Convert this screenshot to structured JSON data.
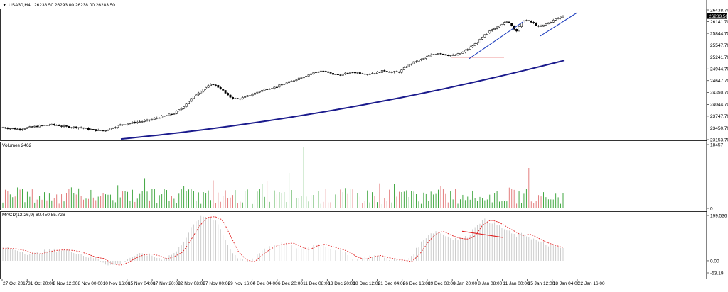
{
  "header": {
    "symbol": "USA30,H4",
    "ohlc": "26238.50 26293.00 26238.00 26283.50",
    "arrow": "▼"
  },
  "colors": {
    "background": "#ffffff",
    "axis": "#000000",
    "candle": "#000000",
    "ma": "#1a1a8c",
    "trendline": "#1f3fbf",
    "support": "#e03030",
    "volume_up": "#2e9e2e",
    "volume_down": "#e07070",
    "macd_hist": "#c0c0c0",
    "macd_signal": "#e02020",
    "current_price_box": "#000000"
  },
  "chart_data": [
    {
      "type": "candlestick",
      "title": "USA30,H4",
      "y_ticks": [
        "26438.70",
        "26141.70",
        "25844.70",
        "25547.70",
        "25241.70",
        "24944.70",
        "24647.70",
        "24350.70",
        "24044.70",
        "23747.70",
        "23450.70",
        "23153.70"
      ],
      "current_price": "26283.50",
      "ylim": [
        23153.7,
        26438.7
      ],
      "x_ticks": [
        "27 Oct 2017",
        "31 Oct 20:00",
        "3 Nov 12:00",
        "8 Nov 00:00",
        "10 Nov 16:00",
        "15 Nov 04:00",
        "17 Nov 20:00",
        "22 Nov 08:00",
        "27 Nov 00:00",
        "29 Nov 16:00",
        "4 Dec 04:00",
        "6 Dec 20:00",
        "11 Dec 08:00",
        "13 Dec 20:00",
        "18 Dec 12:00",
        "21 Dec 04:00",
        "26 Dec 16:00",
        "29 Dec 08:00",
        "3 Jan 20:00",
        "8 Jan 08:00",
        "11 Jan 00:00",
        "15 Jan 12:00",
        "18 Jan 04:00",
        "22 Jan 16:00"
      ],
      "close_path": [
        23460,
        23440,
        23420,
        23450,
        23480,
        23510,
        23530,
        23520,
        23480,
        23470,
        23460,
        23420,
        23390,
        23380,
        23450,
        23520,
        23560,
        23590,
        23620,
        23650,
        23720,
        23760,
        23820,
        23950,
        24150,
        24330,
        24470,
        24560,
        24450,
        24250,
        24180,
        24220,
        24300,
        24380,
        24450,
        24480,
        24560,
        24620,
        24710,
        24780,
        24850,
        24900,
        24830,
        24790,
        24820,
        24860,
        24840,
        24820,
        24850,
        24900,
        24860,
        24870,
        25030,
        25130,
        25200,
        25290,
        25350,
        25300,
        25280,
        25350,
        25480,
        25620,
        25810,
        25960,
        26080,
        26140,
        25900,
        26190,
        26120,
        26000,
        26100,
        26200,
        26283.5
      ],
      "moving_average": {
        "start": 23170,
        "end": 25160
      },
      "annotations": {
        "trend_channel_upper": {
          "from": 25241.7,
          "to": 26141.7
        },
        "trend_channel_lower": {
          "from": 25850,
          "to": 26300
        },
        "support_level": 25241.7
      }
    },
    {
      "type": "bar",
      "title": "Volumes 2462",
      "y_ticks": [
        "18457",
        "0"
      ],
      "ylim": [
        0,
        18457
      ]
    },
    {
      "type": "line",
      "title": "MACD(12,26,9) 60.450 55.726",
      "y_ticks": [
        "199.536",
        "0.00",
        "-53.19"
      ],
      "ylim": [
        -53.19,
        199.536
      ],
      "signal_path": [
        55,
        52,
        45,
        32,
        30,
        40,
        46,
        48,
        46,
        40,
        28,
        15,
        10,
        -12,
        -20,
        -8,
        12,
        26,
        30,
        22,
        8,
        20,
        40,
        92,
        150,
        190,
        195,
        180,
        110,
        40,
        5,
        -6,
        24,
        50,
        68,
        75,
        78,
        62,
        48,
        66,
        73,
        62,
        52,
        40,
        18,
        6,
        16,
        24,
        14,
        8,
        2,
        -3,
        30,
        80,
        118,
        130,
        112,
        100,
        95,
        108,
        160,
        180,
        170,
        150,
        130,
        110,
        118,
        100,
        82,
        70,
        60,
        55.7
      ],
      "divergence_line": {
        "from": 130,
        "to": 103
      }
    }
  ]
}
